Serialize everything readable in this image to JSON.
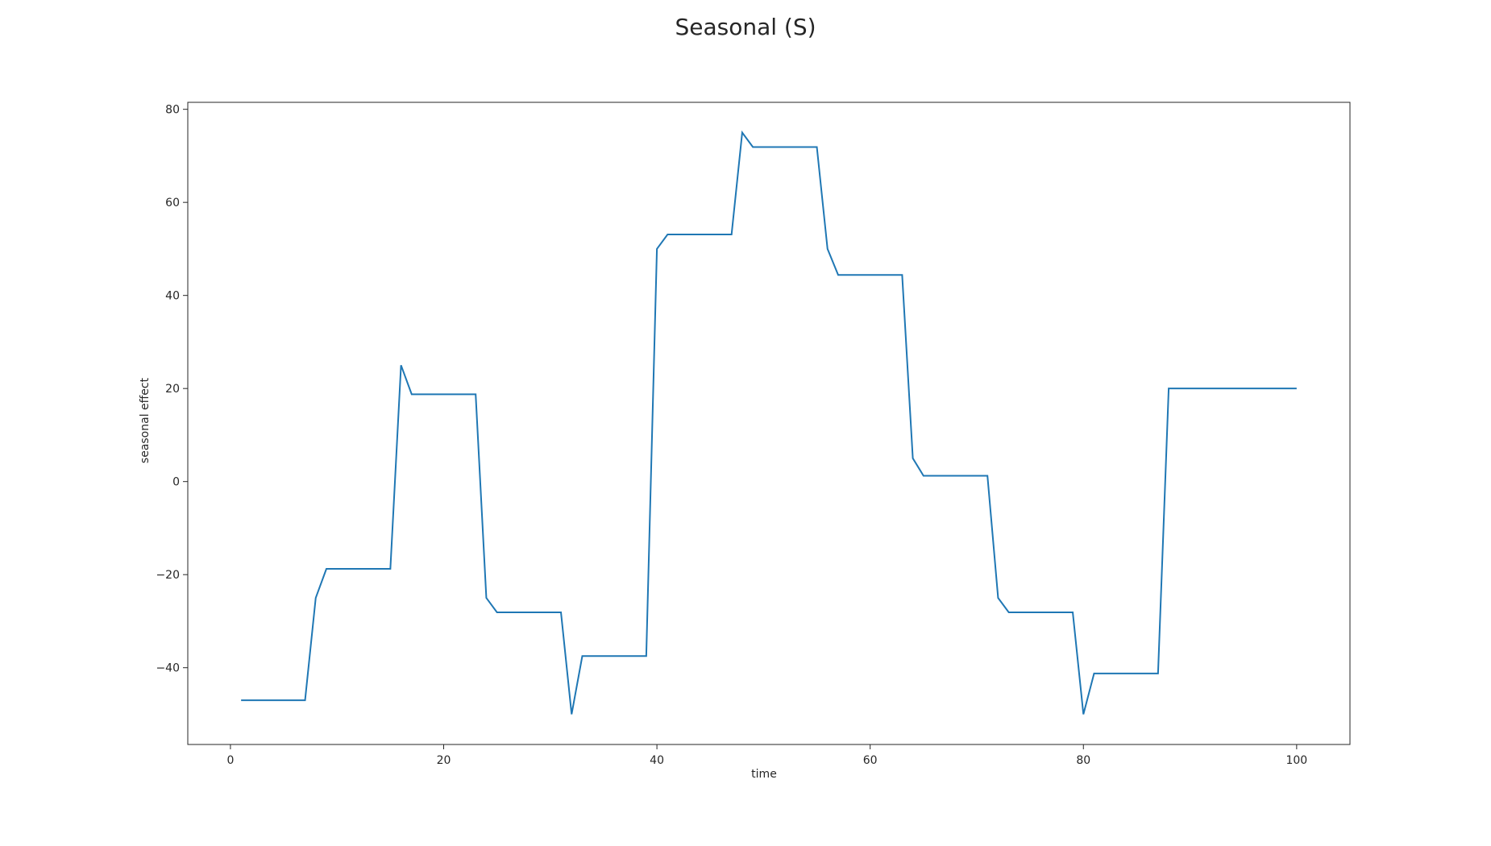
{
  "chart_data": {
    "type": "line",
    "title": "Seasonal (S)",
    "xlabel": "time",
    "ylabel": "seasonal effect",
    "xlim": [
      -4,
      105
    ],
    "ylim": [
      -56.5,
      81.5
    ],
    "xticks": [
      0,
      20,
      40,
      60,
      80,
      100
    ],
    "yticks": [
      -40,
      -20,
      0,
      20,
      40,
      60,
      80
    ],
    "xtick_labels": [
      "0",
      "20",
      "40",
      "60",
      "80",
      "100"
    ],
    "ytick_labels": [
      "−40",
      "−20",
      "0",
      "20",
      "40",
      "60",
      "80"
    ],
    "grid": false,
    "line_color": "#1f77b4",
    "series": [
      {
        "x": [
          1,
          2,
          3,
          4,
          5,
          6,
          7,
          8,
          9,
          10,
          11,
          12,
          13,
          14,
          15,
          16,
          17,
          18,
          19,
          20,
          21,
          22,
          23,
          24,
          25,
          26,
          27,
          28,
          29,
          30,
          31,
          32,
          33,
          34,
          35,
          36,
          37,
          38,
          39,
          40,
          41,
          42,
          43,
          44,
          45,
          46,
          47,
          48,
          49,
          50,
          51,
          52,
          53,
          54,
          55,
          56,
          57,
          58,
          59,
          60,
          61,
          62,
          63,
          64,
          65,
          66,
          67,
          68,
          69,
          70,
          71,
          72,
          73,
          74,
          75,
          76,
          77,
          78,
          79,
          80,
          81,
          82,
          83,
          84,
          85,
          86,
          87,
          88,
          89,
          90,
          91,
          92,
          93,
          94,
          95,
          96,
          97,
          98,
          99,
          100
        ],
        "values": [
          -47,
          -47,
          -47,
          -47,
          -47,
          -47,
          -47,
          -25,
          -18.75,
          -18.75,
          -18.75,
          -18.75,
          -18.75,
          -18.75,
          -18.75,
          25,
          18.75,
          18.75,
          18.75,
          18.75,
          18.75,
          18.75,
          18.75,
          -25,
          -28.1,
          -28.1,
          -28.1,
          -28.1,
          -28.1,
          -28.1,
          -28.1,
          -50,
          -37.5,
          -37.5,
          -37.5,
          -37.5,
          -37.5,
          -37.5,
          -37.5,
          50,
          53.1,
          53.1,
          53.1,
          53.1,
          53.1,
          53.1,
          53.1,
          75,
          71.9,
          71.9,
          71.9,
          71.9,
          71.9,
          71.9,
          71.9,
          50,
          44.4,
          44.4,
          44.4,
          44.4,
          44.4,
          44.4,
          44.4,
          5,
          1.25,
          1.25,
          1.25,
          1.25,
          1.25,
          1.25,
          1.25,
          -25,
          -28.1,
          -28.1,
          -28.1,
          -28.1,
          -28.1,
          -28.1,
          -28.1,
          -50,
          -41.25,
          -41.25,
          -41.25,
          -41.25,
          -41.25,
          -41.25,
          -41.25,
          20,
          20,
          20,
          20,
          20,
          20,
          20,
          20,
          20,
          20,
          20,
          20,
          20
        ]
      }
    ]
  }
}
